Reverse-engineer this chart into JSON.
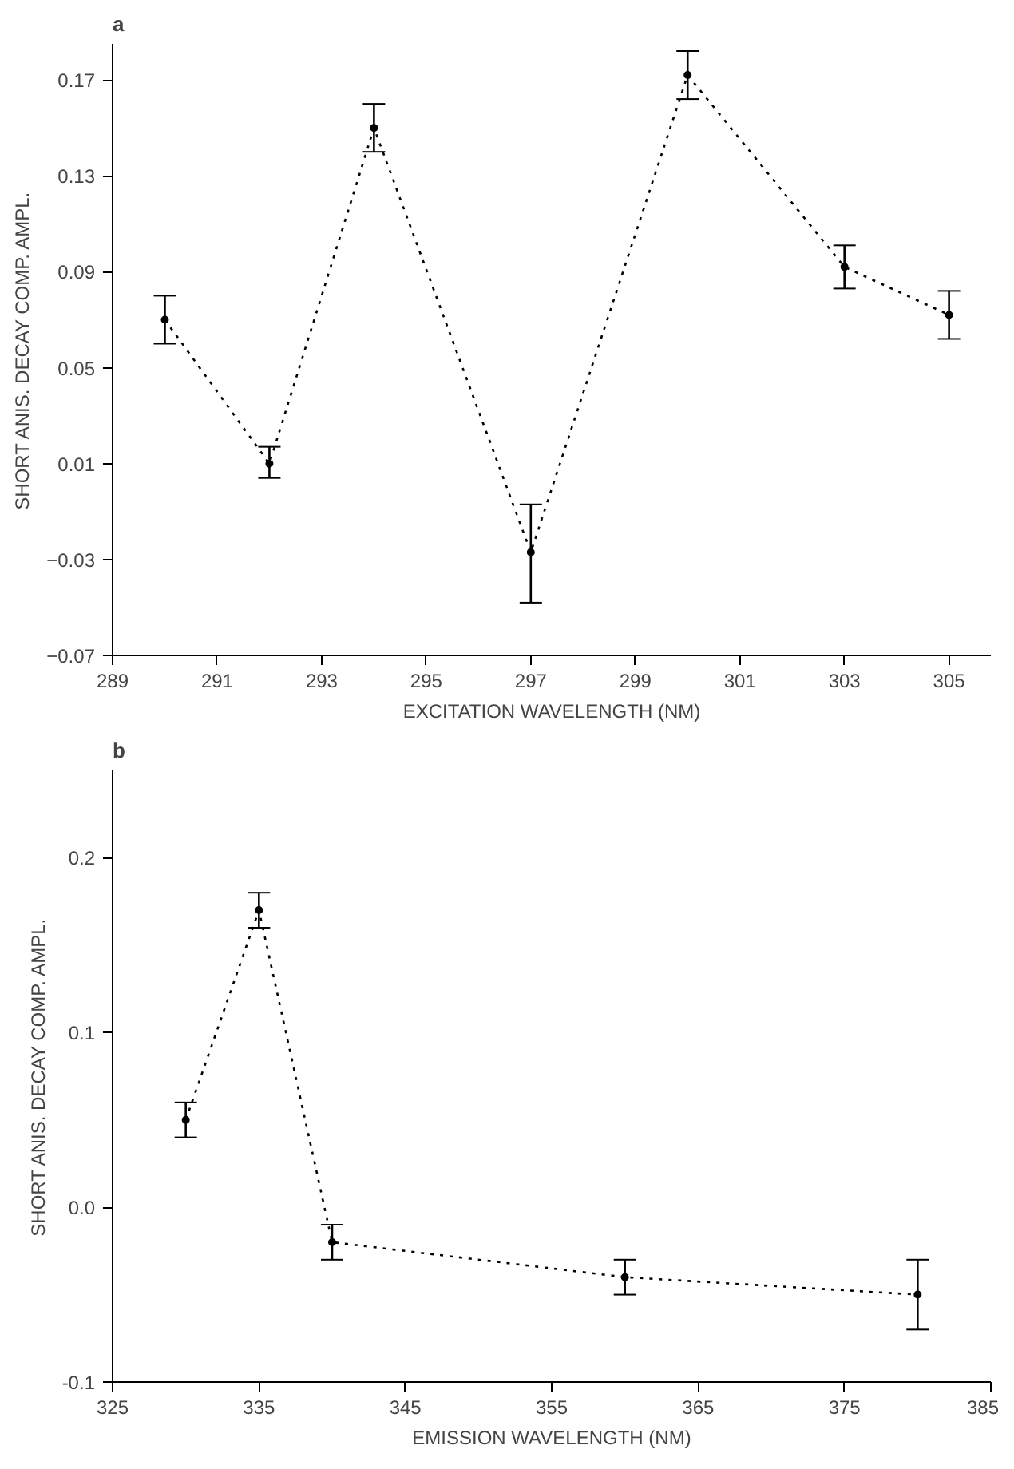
{
  "chart_data": [
    {
      "type": "line",
      "title": "a",
      "xlabel": "EXCITATION WAVELENGTH (NM)",
      "ylabel": "SHORT ANIS. DECAY COMP. AMPL.",
      "x": [
        290,
        292,
        294,
        297,
        300,
        303,
        305
      ],
      "series": [
        {
          "color": "#000000",
          "values": [
            0.07,
            0.01,
            0.15,
            -0.027,
            0.172,
            0.092,
            0.072
          ],
          "errors": [
            [
              0.06,
              0.08
            ],
            [
              0.004,
              0.017
            ],
            [
              0.14,
              0.16
            ],
            [
              -0.048,
              -0.007
            ],
            [
              0.162,
              0.182
            ],
            [
              0.083,
              0.101
            ],
            [
              0.062,
              0.082
            ]
          ]
        }
      ],
      "xlim": [
        289,
        305.8
      ],
      "xticks": [
        289,
        291,
        293,
        295,
        297,
        299,
        301,
        303,
        305
      ],
      "ylim": [
        -0.07,
        0.185
      ],
      "yticks": [
        -0.07,
        -0.03,
        0.01,
        0.05,
        0.09,
        0.13,
        0.17
      ],
      "marker": "circle",
      "line_style": "dotted"
    },
    {
      "type": "line",
      "title": "b",
      "xlabel": "EMISSION WAVELENGTH (NM)",
      "ylabel": "SHORT ANIS. DECAY COMP. AMPL.",
      "x": [
        330,
        335,
        340,
        360,
        380
      ],
      "series": [
        {
          "color": "#000000",
          "values": [
            0.05,
            0.17,
            -0.02,
            -0.04,
            -0.05
          ],
          "errors": [
            [
              0.04,
              0.06
            ],
            [
              0.16,
              0.18
            ],
            [
              -0.03,
              -0.01
            ],
            [
              -0.05,
              -0.03
            ],
            [
              -0.07,
              -0.03
            ]
          ]
        }
      ],
      "xlim": [
        325,
        385
      ],
      "xticks": [
        325,
        335,
        345,
        355,
        365,
        375,
        385
      ],
      "ylim": [
        -0.1,
        0.25
      ],
      "yticks": [
        {
          "value": -0.1,
          "label": "-0.1"
        },
        {
          "value": 0.0,
          "label": "0.0"
        },
        {
          "value": 0.1,
          "label": "0.1"
        },
        {
          "value": 0.2,
          "label": "0.2"
        }
      ],
      "marker": "circle",
      "line_style": "dotted"
    }
  ]
}
